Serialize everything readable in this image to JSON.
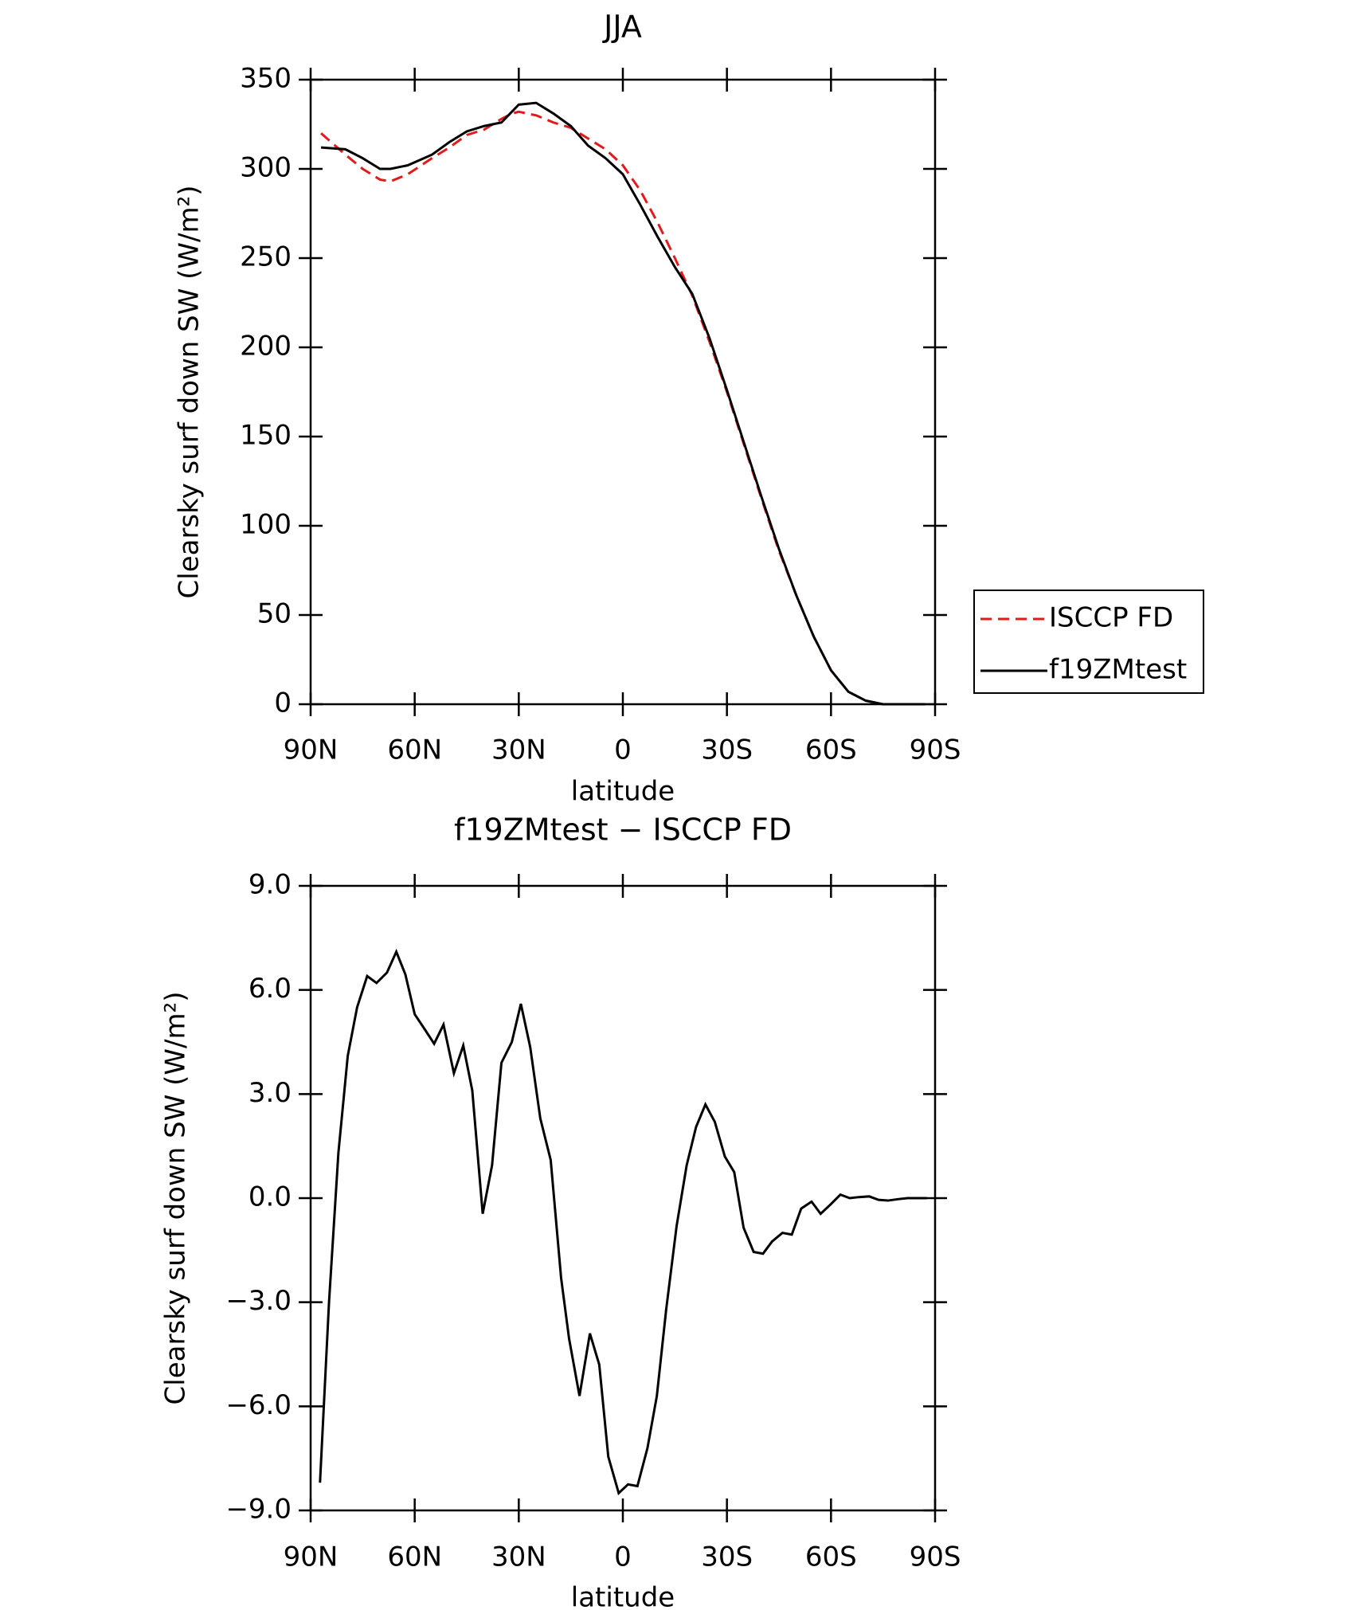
{
  "chart_data": [
    {
      "type": "line",
      "title": "JJA",
      "xlabel": "latitude",
      "ylabel": "Clearsky surf down SW (W/m²)",
      "x": [
        87,
        80,
        75,
        70,
        67,
        62,
        55,
        50,
        45,
        40,
        35,
        32,
        30,
        25,
        20,
        15,
        10,
        5,
        0,
        -5,
        -10,
        -15,
        -20,
        -25,
        -30,
        -35,
        -40,
        -45,
        -50,
        -55,
        -60,
        -65,
        -70,
        -75,
        -80,
        -87
      ],
      "series": [
        {
          "name": "ISCCP FD",
          "color": "#e31a1c",
          "dash": true,
          "values": [
            320,
            308,
            300,
            294,
            293,
            297,
            306,
            312,
            319,
            322,
            328,
            331,
            332,
            330,
            326,
            323,
            317,
            311,
            302,
            288,
            270,
            250,
            229,
            203,
            175,
            145,
            115,
            86,
            61,
            38,
            19,
            7,
            2,
            0,
            0,
            0
          ]
        },
        {
          "name": "f19ZMtest",
          "color": "#000000",
          "dash": false,
          "values": [
            312,
            311,
            306,
            300,
            300,
            302,
            308,
            315,
            321,
            324,
            326,
            332,
            336,
            337,
            331,
            324,
            313,
            306,
            297,
            280,
            262,
            245,
            230,
            205,
            176,
            146,
            116,
            87,
            61,
            38,
            19,
            7,
            2,
            0,
            0,
            0
          ]
        }
      ],
      "xlim": [
        90,
        -90
      ],
      "xticks": [
        {
          "value": 90,
          "label": "90N"
        },
        {
          "value": 60,
          "label": "60N"
        },
        {
          "value": 30,
          "label": "30N"
        },
        0,
        {
          "value": -30,
          "label": "30S"
        },
        {
          "value": -60,
          "label": "60S"
        },
        {
          "value": -90,
          "label": "90S"
        }
      ],
      "ylim": [
        0,
        350
      ],
      "yticks": [
        0,
        50,
        100,
        150,
        200,
        250,
        300,
        350
      ],
      "legend": "right"
    },
    {
      "type": "line",
      "title": "f19ZMtest − ISCCP FD",
      "xlabel": "latitude",
      "ylabel": "Clearsky surf down SW (W/m²)",
      "x": [
        87.3,
        84.7,
        82,
        79.3,
        76.6,
        73.7,
        71,
        68,
        65.3,
        62.7,
        60,
        57,
        54.4,
        51.7,
        48.7,
        46,
        43.4,
        40.4,
        37.7,
        35,
        32,
        29.4,
        26.7,
        23.8,
        20.8,
        17.8,
        15.5,
        12.5,
        9.5,
        6.8,
        4.2,
        1.2,
        -1.5,
        -4.2,
        -7.1,
        -9.8,
        -12.5,
        -15.5,
        -18.4,
        -21.1,
        -23.8,
        -26.5,
        -29.4,
        -32.1,
        -34.8,
        -37.7,
        -40.4,
        -43,
        -46,
        -48.7,
        -51.4,
        -54.4,
        -57,
        -59.7,
        -62.7,
        -65.4,
        -68,
        -71,
        -73.7,
        -76.4,
        -79.3,
        -82,
        -84.7,
        -87.6
      ],
      "series": [
        {
          "name": "f19ZMtest",
          "color": "#000000",
          "dash": false,
          "values": [
            -8.2,
            -3.0,
            1.3,
            4.1,
            5.5,
            6.4,
            6.2,
            6.5,
            7.1,
            6.45,
            5.3,
            4.85,
            4.45,
            5.0,
            3.6,
            4.4,
            3.1,
            -0.45,
            0.95,
            3.9,
            4.5,
            5.6,
            4.35,
            2.3,
            1.1,
            -2.3,
            -4.05,
            -5.7,
            -3.9,
            -4.8,
            -7.45,
            -8.5,
            -8.25,
            -8.3,
            -7.2,
            -5.7,
            -3.2,
            -0.8,
            0.95,
            2.05,
            2.7,
            2.2,
            1.2,
            0.75,
            -0.85,
            -1.55,
            -1.6,
            -1.25,
            -1.0,
            -1.05,
            -0.3,
            -0.1,
            -0.45,
            -0.2,
            0.1,
            0.0,
            0.03,
            0.05,
            -0.05,
            -0.07,
            -0.03,
            0.0,
            0.0,
            0.0
          ]
        }
      ],
      "xlim": [
        90,
        -90
      ],
      "xticks": [
        {
          "value": 90,
          "label": "90N"
        },
        {
          "value": 60,
          "label": "60N"
        },
        {
          "value": 30,
          "label": "30N"
        },
        0,
        {
          "value": -30,
          "label": "30S"
        },
        {
          "value": -60,
          "label": "60S"
        },
        {
          "value": -90,
          "label": "90S"
        }
      ],
      "ylim": [
        -9,
        9
      ],
      "yticks": [
        {
          "value": -9,
          "label": "−9.0"
        },
        {
          "value": -6,
          "label": "−6.0"
        },
        {
          "value": -3,
          "label": "−3.0"
        },
        {
          "value": 0,
          "label": "0.0"
        },
        {
          "value": 3,
          "label": "3.0"
        },
        {
          "value": 6,
          "label": "6.0"
        },
        {
          "value": 9,
          "label": "9.0"
        }
      ]
    }
  ]
}
